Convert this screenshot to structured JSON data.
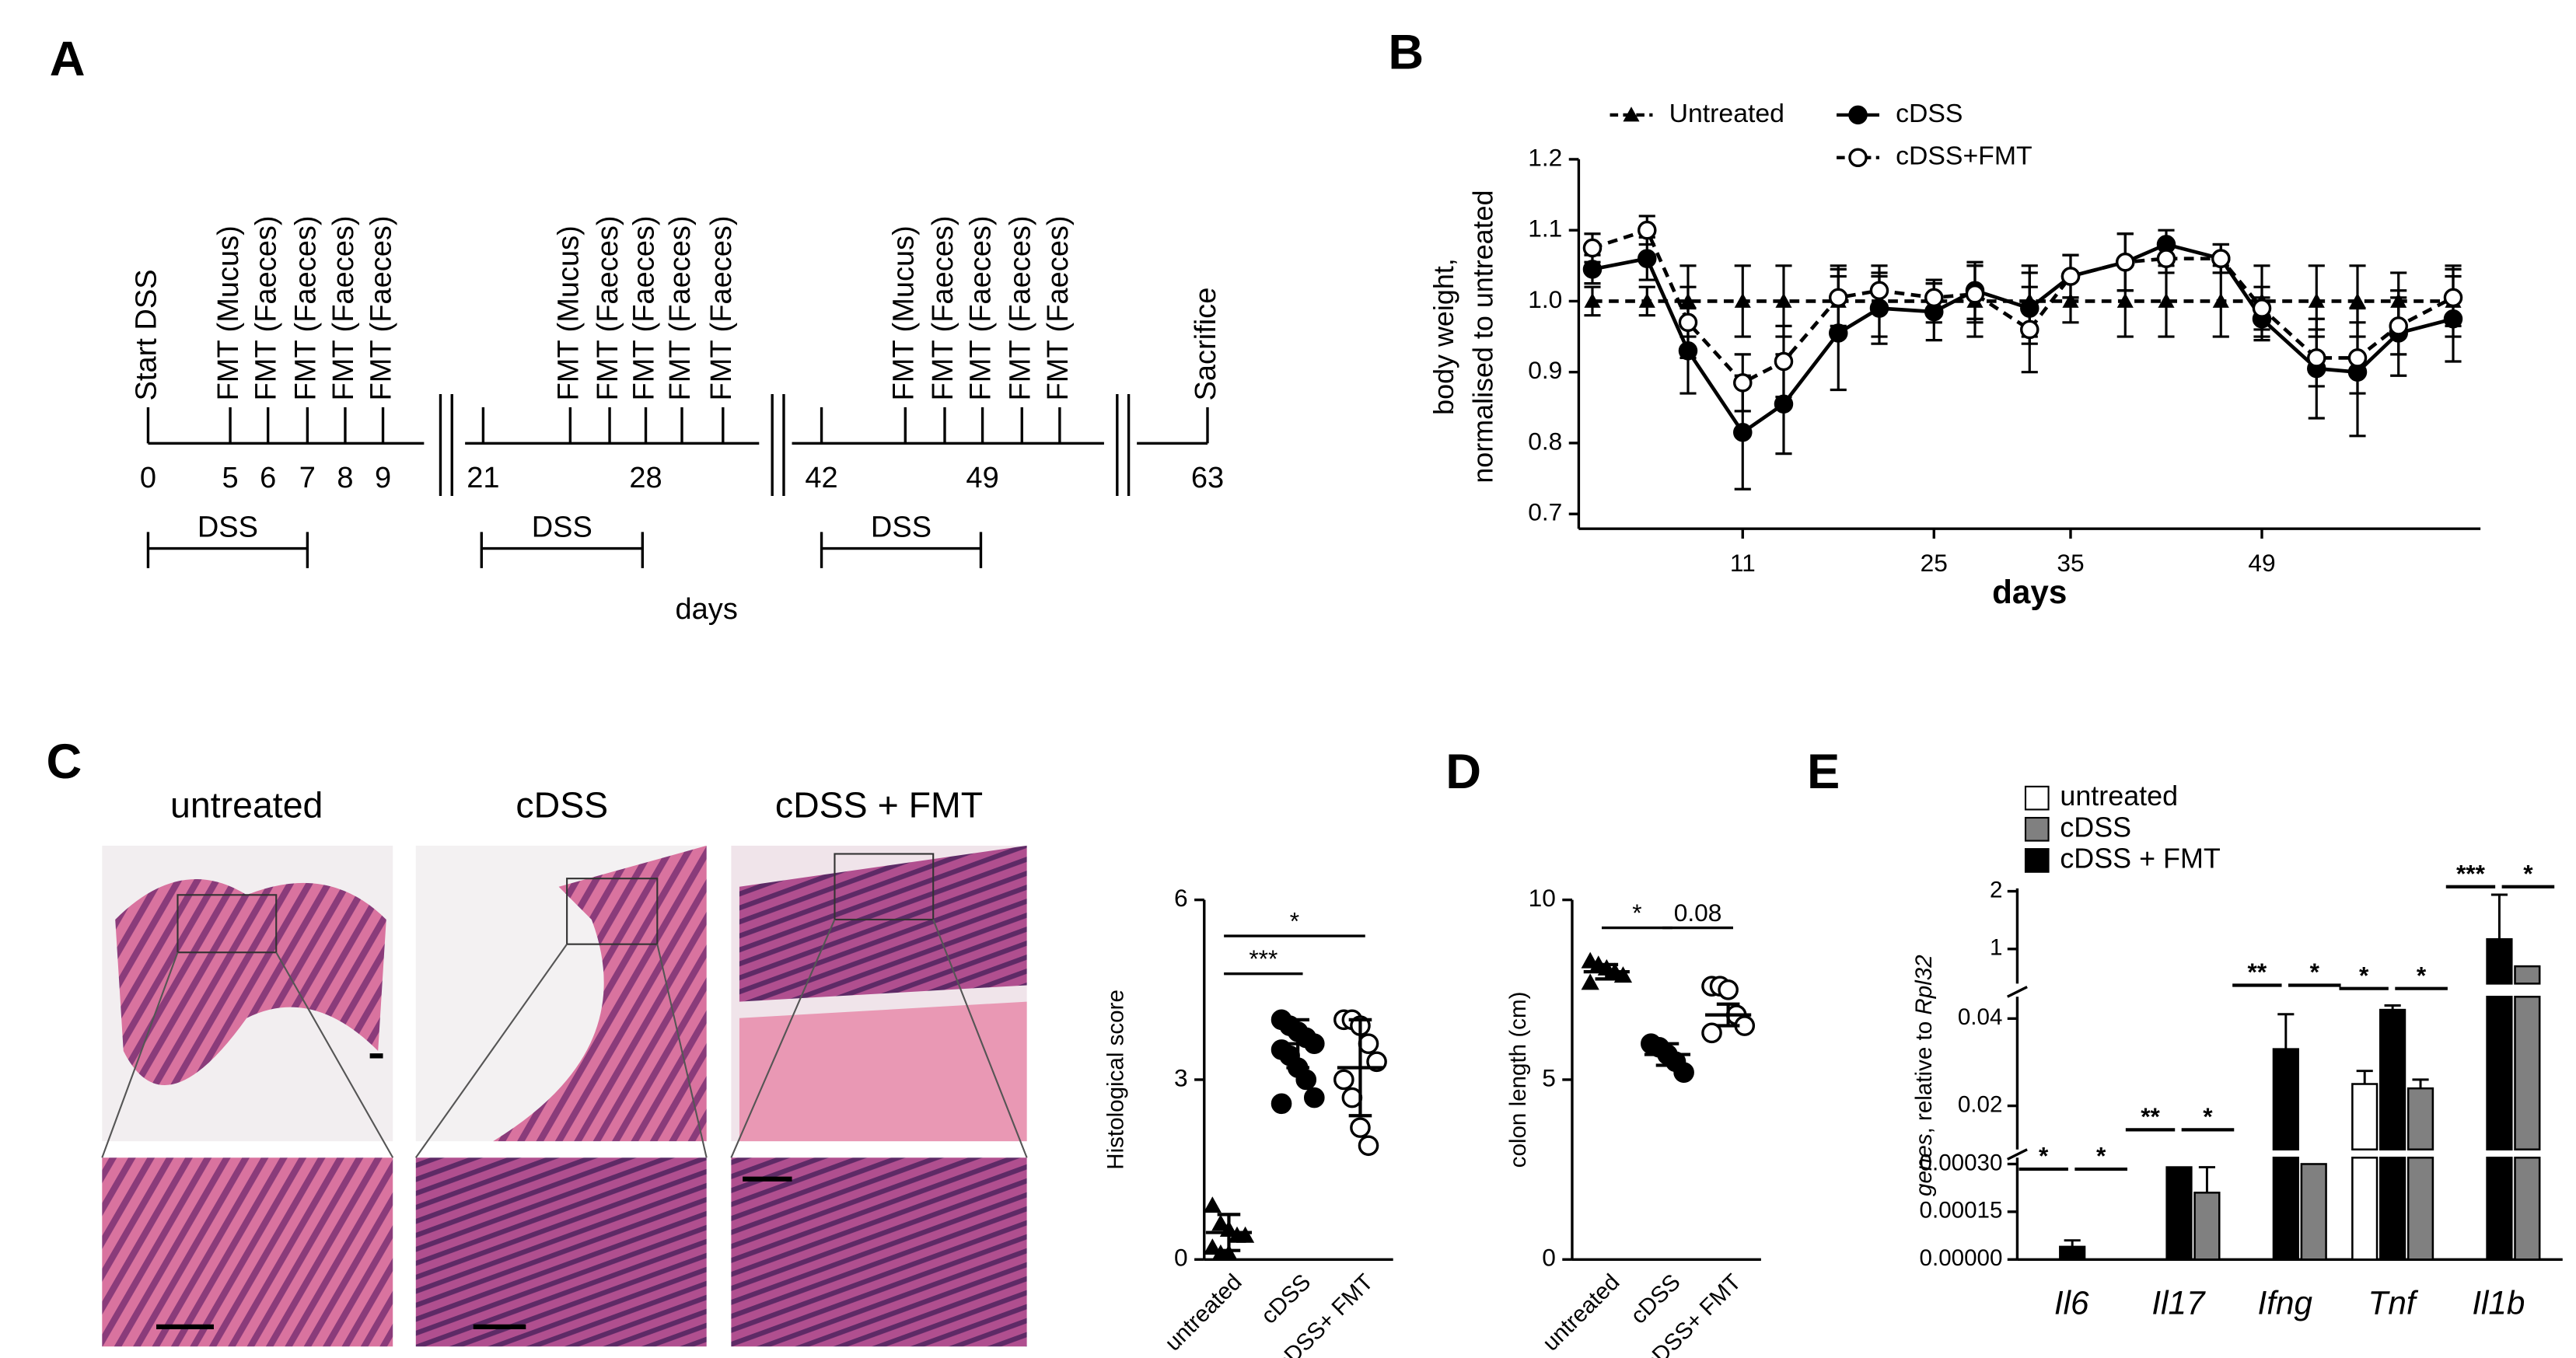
{
  "panel_labels": [
    "A",
    "B",
    "C",
    "D",
    "E"
  ],
  "timeline": {
    "xlabel": "days",
    "segments": [
      {
        "ticks": [
          {
            "label": "0",
            "event": "Start DSS"
          },
          {
            "label": "5",
            "event": "FMT (Mucus)"
          },
          {
            "label": "6",
            "event": "FMT (Faeces)"
          },
          {
            "label": "7",
            "event": "FMT (Faeces)"
          },
          {
            "label": "8",
            "event": "FMT (Faeces)"
          },
          {
            "label": "9",
            "event": "FMT (Faeces)"
          }
        ],
        "bracket": "DSS"
      },
      {
        "ticks": [
          {
            "label": "21"
          },
          {
            "event": "FMT (Mucus)"
          },
          {
            "event": "FMT (Faeces)"
          },
          {
            "label": "28",
            "event": "FMT (Faeces)"
          },
          {
            "event": "FMT (Faeces)"
          },
          {
            "event": "FMT (Faeces)"
          }
        ],
        "bracket": "DSS"
      },
      {
        "ticks": [
          {
            "label": "42"
          },
          {
            "event": "FMT (Mucus)"
          },
          {
            "event": "FMT (Faeces)"
          },
          {
            "label": "49",
            "event": "FMT (Faeces)"
          },
          {
            "event": "FMT (Faeces)"
          },
          {
            "event": "FMT (Faeces)"
          }
        ],
        "bracket": "DSS"
      },
      {
        "ticks": [
          {
            "label": "63",
            "event": "Sacrifice"
          }
        ]
      }
    ]
  },
  "histology": {
    "titles": [
      "untreated",
      "cDSS",
      "cDSS + FMT"
    ]
  },
  "chart_data": [
    {
      "type": "line",
      "xlabel": "days",
      "ylabel": [
        "body weight,",
        "normalised to untreated"
      ],
      "x": [
        0,
        4,
        7,
        11,
        14,
        18,
        21,
        25,
        28,
        32,
        35,
        39,
        42,
        46,
        49,
        53,
        56,
        59,
        63
      ],
      "xlim": [
        -1,
        65
      ],
      "xticks": [
        11,
        25,
        35,
        49
      ],
      "ylim": [
        0.7,
        1.2
      ],
      "yticks": [
        0.7,
        0.8,
        0.9,
        {
          "value": 1,
          "label": "1.0"
        },
        1.1,
        1.2
      ],
      "series": [
        {
          "name": "Untreated",
          "color": "#000000",
          "marker": "triangle",
          "dashed": true,
          "values": [
            1,
            1,
            1,
            1,
            1,
            1,
            1,
            1,
            1,
            1,
            1,
            1,
            1,
            1,
            1,
            1,
            1,
            1,
            1
          ],
          "errors": [
            0.02,
            0.02,
            0.05,
            0.05,
            0.05,
            0.05,
            0.05,
            0.03,
            0.05,
            0.05,
            0.03,
            0.05,
            0.05,
            0.05,
            0.05,
            0.05,
            0.05,
            0.04,
            0.05
          ]
        },
        {
          "name": "cDSS",
          "color": "#000000",
          "marker": "circle",
          "dashed": false,
          "values": [
            1.045,
            1.06,
            0.93,
            0.815,
            0.855,
            0.955,
            0.99,
            0.985,
            1.015,
            0.99,
            1.035,
            1.055,
            1.08,
            1.06,
            0.975,
            0.905,
            0.9,
            0.955,
            0.975
          ],
          "errors": [
            0.02,
            0.03,
            0.06,
            0.08,
            0.07,
            0.08,
            0.05,
            0.04,
            0.04,
            0.05,
            0.03,
            0.04,
            0.02,
            0.02,
            0.03,
            0.07,
            0.09,
            0.06,
            0.06
          ]
        },
        {
          "name": "cDSS+FMT",
          "color": "#000000",
          "marker": "open-circle",
          "dashed": true,
          "values": [
            1.075,
            1.1,
            0.97,
            0.885,
            0.915,
            1.005,
            1.015,
            1.005,
            1.01,
            0.96,
            1.035,
            1.055,
            1.06,
            1.06,
            0.99,
            0.92,
            0.92,
            0.965,
            1.005
          ],
          "errors": [
            0.02,
            0.02,
            0.05,
            0.04,
            0.05,
            0.04,
            0.02,
            0.02,
            0.04,
            0.06,
            0.03,
            0.04,
            0.02,
            0.02,
            0.03,
            0.04,
            0.05,
            0.04,
            0.04
          ]
        }
      ],
      "legend": "top"
    },
    {
      "type": "dotplot",
      "ylabel": "Histological score",
      "categories": [
        "untreated",
        "cDSS",
        "cDSS+ FMT"
      ],
      "markers": [
        "triangle",
        "circle",
        "open-circle"
      ],
      "points": [
        [
          0.9,
          0.6,
          0.5,
          0.4,
          0.4,
          0.2,
          0.1,
          0.1
        ],
        [
          4.0,
          3.9,
          3.8,
          3.7,
          3.6,
          3.5,
          3.4,
          3.2,
          3.0,
          2.7,
          2.6
        ],
        [
          4.0,
          4.0,
          3.9,
          3.6,
          3.3,
          3.0,
          2.7,
          2.2,
          1.9
        ]
      ],
      "mean": [
        0.45,
        3.6,
        3.2
      ],
      "error": [
        0.3,
        0.4,
        0.8
      ],
      "ylim": [
        0,
        6
      ],
      "yticks": [
        0,
        3,
        6
      ],
      "comparisons": [
        {
          "pair": [
            "untreated",
            "cDSS"
          ],
          "label": "***"
        },
        {
          "pair": [
            "untreated",
            "cDSS+ FMT"
          ],
          "label": "*"
        }
      ]
    },
    {
      "type": "dotplot",
      "ylabel": "colon length (cm)",
      "categories": [
        "untreated",
        "cDSS",
        "cDSS+ FMT"
      ],
      "markers": [
        "triangle",
        "circle",
        "open-circle"
      ],
      "points": [
        [
          8.3,
          8.2,
          8.1,
          8.0,
          7.9,
          7.7
        ],
        [
          6.0,
          5.9,
          5.7,
          5.5,
          5.2
        ],
        [
          7.6,
          7.6,
          7.5,
          6.8,
          6.5,
          6.3
        ]
      ],
      "mean": [
        8.0,
        5.7,
        6.8
      ],
      "error": [
        0.2,
        0.3,
        0.3
      ],
      "ylim": [
        0,
        10
      ],
      "yticks": [
        0,
        5,
        10
      ],
      "comparisons": [
        {
          "pair": [
            "untreated",
            "cDSS"
          ],
          "label": "*"
        },
        {
          "pair": [
            "cDSS",
            "cDSS+ FMT"
          ],
          "label": "0.08"
        }
      ]
    },
    {
      "type": "broken-bar",
      "ylabel": [
        "genes",
        ", relative to ",
        "Rpl32"
      ],
      "categories": [
        "Il6",
        "Il17",
        "Ifng",
        "Tnf",
        "Il1b"
      ],
      "segments": [
        {
          "ylim": [
            0,
            0.00032
          ],
          "yticks": [
            {
              "value": 0,
              "label": "0.00000"
            },
            {
              "value": 0.00015,
              "label": "0.00015"
            },
            {
              "value": 0.0003,
              "label": "0.00030"
            }
          ]
        },
        {
          "ylim": [
            0.01,
            0.045
          ],
          "yticks": [
            0.02,
            0.04
          ]
        },
        {
          "ylim": [
            0.4,
            2.05
          ],
          "yticks": [
            1,
            2
          ]
        }
      ],
      "series": [
        {
          "name": "untreated",
          "color": "#ffffff",
          "values": [
            0,
            0,
            0,
            0.025,
            0
          ],
          "errors": [
            0,
            0,
            0,
            0.003,
            0
          ]
        },
        {
          "name": "cDSS",
          "color": "#808080",
          "values": [
            0,
            0.00021,
            0.0003,
            0.024,
            0.7
          ],
          "errors": [
            0,
            8e-05,
            0,
            0.002,
            0
          ]
        },
        {
          "name": "cDSS + FMT",
          "color": "#000000",
          "values": [
            4e-05,
            0.00029,
            0.033,
            0.042,
            1.17
          ],
          "errors": [
            2e-05,
            0,
            0.008,
            0.001,
            0.77
          ]
        }
      ],
      "significance": [
        [
          "*",
          "*"
        ],
        [
          "**",
          "*"
        ],
        [
          "**",
          "*"
        ],
        [
          "*",
          "*"
        ],
        [
          "***",
          "*"
        ]
      ]
    }
  ]
}
